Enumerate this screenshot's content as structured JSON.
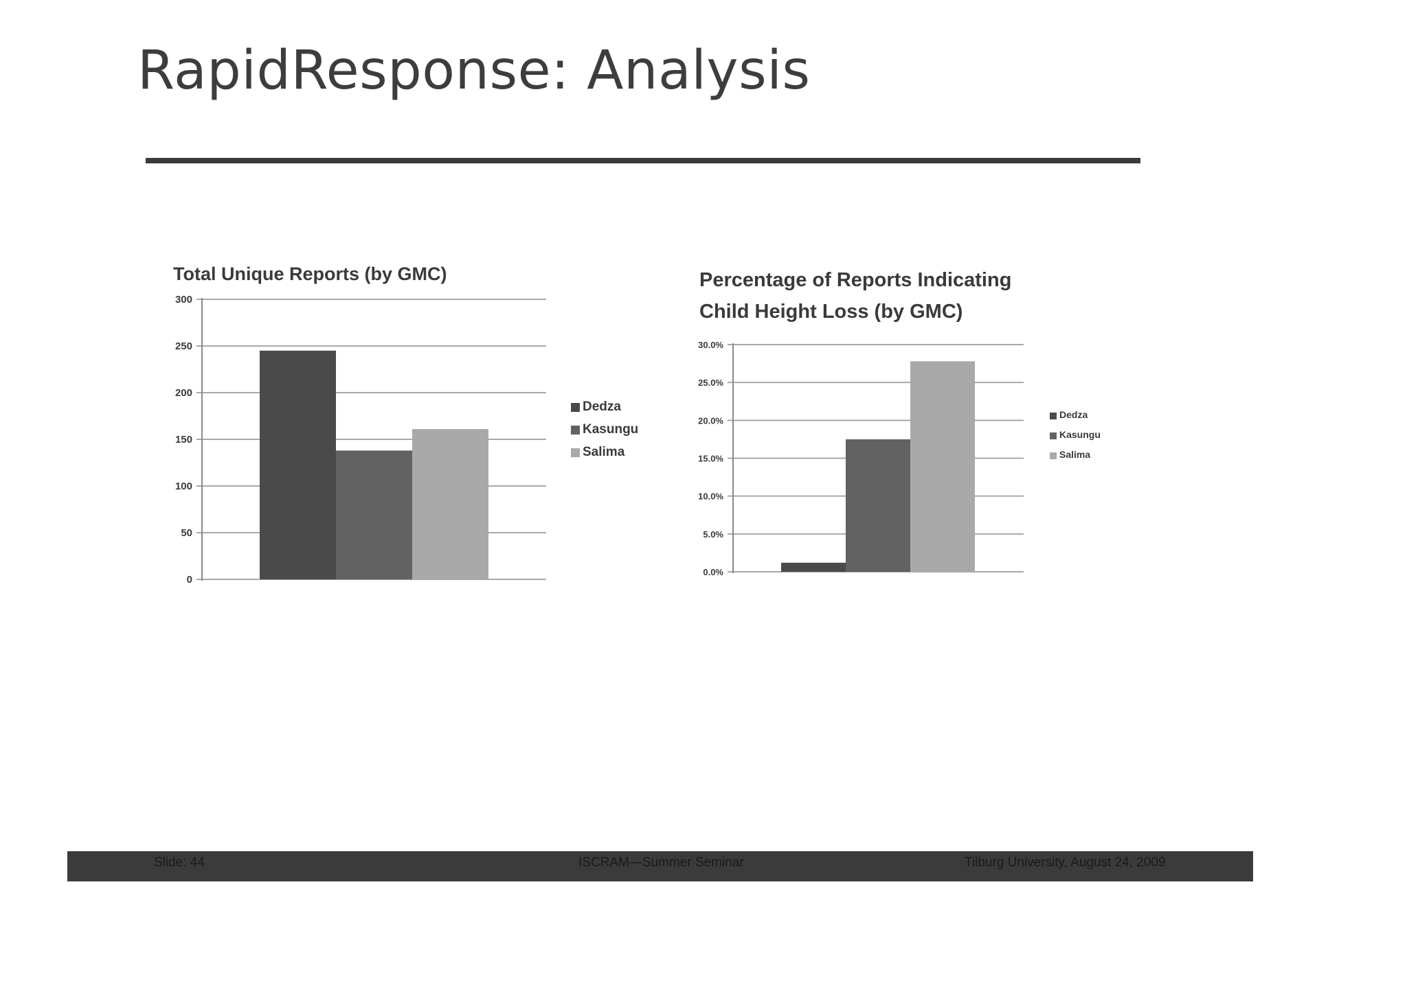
{
  "slide": {
    "title": "RapidResponse: Analysis"
  },
  "footer": {
    "slide_number": "Slide: 44",
    "seminar": "ISCRAM—Summer Seminar",
    "place_date": "Tilburg University, August 24, 2009"
  },
  "colors": {
    "dedza": "#4a4a4a",
    "kasungu": "#626262",
    "salima": "#a9a9a9",
    "gridline": "#a8a8a8",
    "footer_bar": "#3b3b3b"
  },
  "chart_data": [
    {
      "type": "bar",
      "title": "Total Unique Reports (by GMC)",
      "categories": [
        ""
      ],
      "series": [
        {
          "name": "Dedza",
          "values": [
            245
          ]
        },
        {
          "name": "Kasungu",
          "values": [
            138
          ]
        },
        {
          "name": "Salima",
          "values": [
            161
          ]
        }
      ],
      "yticks": [
        "0",
        "50",
        "100",
        "150",
        "200",
        "250",
        "300"
      ],
      "ylim": [
        0,
        300
      ],
      "grid": true,
      "legend": "right"
    },
    {
      "type": "bar",
      "title_lines": [
        "Percentage of Reports Indicating",
        "Child Height Loss (by GMC)"
      ],
      "categories": [
        ""
      ],
      "series": [
        {
          "name": "Dedza",
          "values": [
            1.2
          ]
        },
        {
          "name": "Kasungu",
          "values": [
            17.5
          ]
        },
        {
          "name": "Salima",
          "values": [
            27.8
          ]
        }
      ],
      "yticks": [
        "0.0%",
        "5.0%",
        "10.0%",
        "15.0%",
        "20.0%",
        "25.0%",
        "30.0%"
      ],
      "ylim": [
        0,
        30
      ],
      "grid": true,
      "legend": "right"
    }
  ]
}
